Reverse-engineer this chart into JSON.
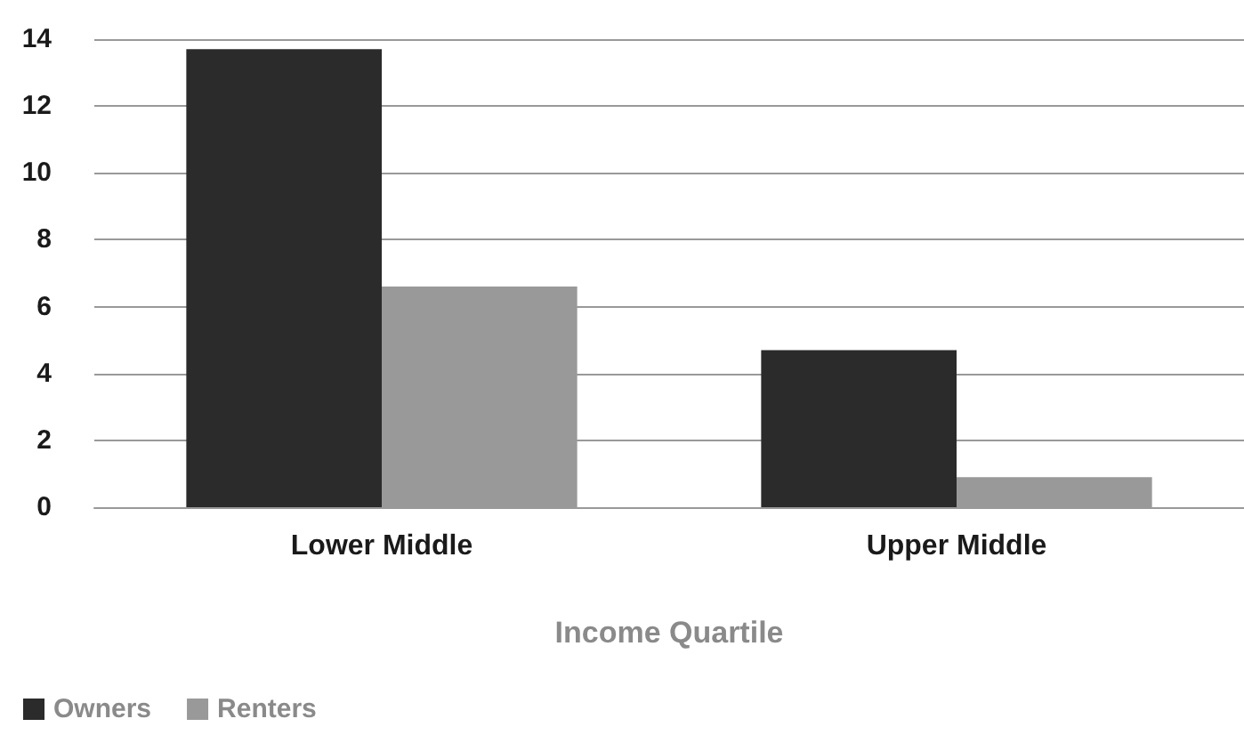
{
  "chart_data": {
    "type": "bar",
    "xlabel": "Income Quartile",
    "categories": [
      "Lower Middle",
      "Upper Middle"
    ],
    "series": [
      {
        "name": "Owners",
        "color": "#2b2b2b",
        "values": [
          13.7,
          4.7
        ]
      },
      {
        "name": "Renters",
        "color": "#999999",
        "values": [
          6.6,
          0.9
        ]
      }
    ],
    "ylim": [
      0,
      14
    ],
    "yticks": [
      0,
      2,
      4,
      6,
      8,
      10,
      12,
      14
    ],
    "grid": "y",
    "legend": "bottom left"
  }
}
